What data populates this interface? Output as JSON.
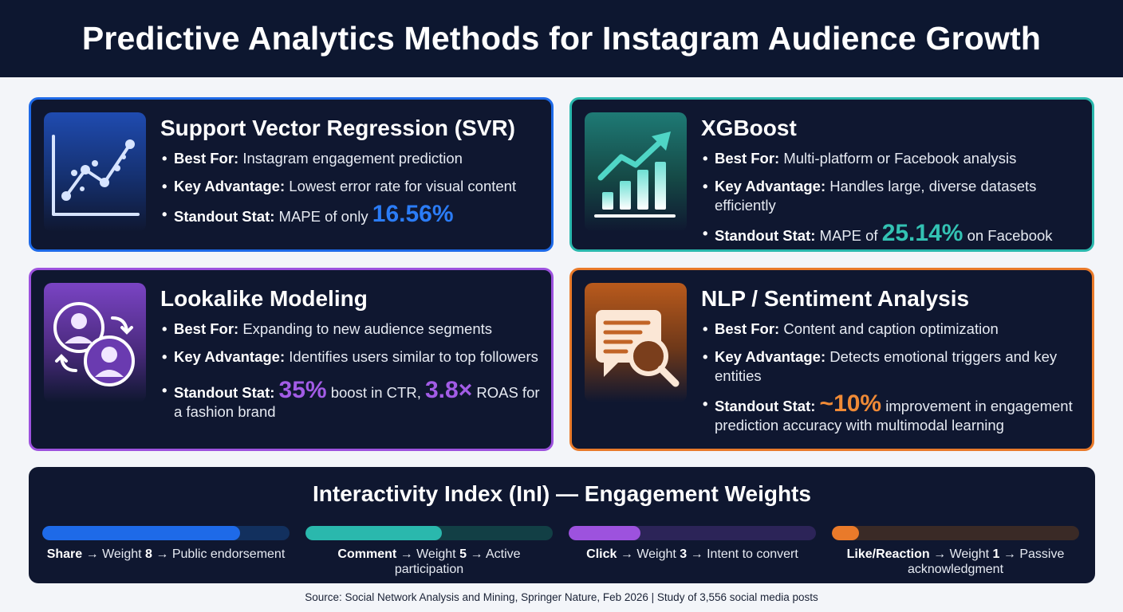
{
  "page": {
    "title": "Predictive Analytics Methods for Instagram Audience Growth",
    "source": "Source: Social Network Analysis and Mining, Springer Nature, Feb 2026 | Study of 3,556 social media posts"
  },
  "colors": {
    "svr": "#1e6ae8",
    "xgboost": "#2ab8ad",
    "lookalike": "#9d52de",
    "nlp": "#e97a2a",
    "background_dark": "#0f1730"
  },
  "labels": {
    "best_for": "Best For:",
    "key_advantage": "Key Advantage:",
    "standout_stat": "Standout Stat:"
  },
  "cards": {
    "svr": {
      "icon": "line-chart-icon",
      "title": "Support Vector Regression (SVR)",
      "best_for": "Instagram engagement prediction",
      "key_advantage": "Lowest error rate for visual content",
      "stat_prefix": "MAPE of only",
      "stat_value": "16.56%"
    },
    "xgboost": {
      "icon": "bar-chart-arrow-icon",
      "title": "XGBoost",
      "best_for": "Multi-platform or Facebook analysis",
      "key_advantage": "Handles large, diverse datasets efficiently",
      "stat_prefix": "MAPE of",
      "stat_value": "25.14%",
      "stat_suffix": "on Facebook"
    },
    "lookalike": {
      "icon": "users-swap-icon",
      "title": "Lookalike Modeling",
      "best_for": "Expanding to new audience segments",
      "key_advantage": "Identifies users similar to top followers",
      "stat_value": "35%",
      "stat_mid": "boost in CTR,",
      "stat_value2": "3.8×",
      "stat_suffix": "ROAS for a fashion brand"
    },
    "nlp": {
      "icon": "document-search-icon",
      "title": "NLP / Sentiment Analysis",
      "best_for": "Content and caption optimization",
      "key_advantage": "Detects emotional triggers and key entities",
      "stat_value": "~10%",
      "stat_suffix": "improvement in engagement prediction accuracy with multimodal learning"
    }
  },
  "weights": {
    "title": "Interactivity Index (InI) — Engagement Weights",
    "items": [
      {
        "action": "Share",
        "weight_label": "Weight",
        "weight": "8",
        "meaning": "Public endorsement",
        "level": 0.8
      },
      {
        "action": "Comment",
        "weight_label": "Weight",
        "weight": "5",
        "meaning": "Active participation",
        "level": 0.55
      },
      {
        "action": "Click",
        "weight_label": "Weight",
        "weight": "3",
        "meaning": "Intent to convert",
        "level": 0.29
      },
      {
        "action": "Like/Reaction",
        "weight_label": "Weight",
        "weight": "1",
        "meaning": "Passive acknowledgment",
        "level": 0.11
      }
    ],
    "arrow": "→"
  }
}
